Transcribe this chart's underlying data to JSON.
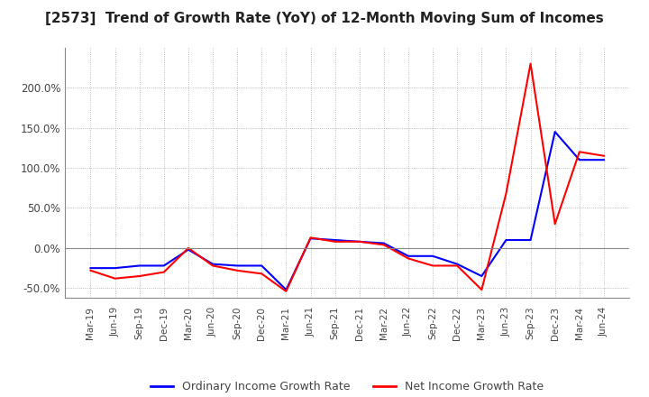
{
  "title": "[2573]  Trend of Growth Rate (YoY) of 12-Month Moving Sum of Incomes",
  "title_fontsize": 11,
  "background_color": "#ffffff",
  "grid_color": "#aaaaaa",
  "ylim": [
    -0.62,
    0.275
  ],
  "yticks": [
    -0.5,
    0.0,
    0.5,
    1.0,
    1.5,
    2.0
  ],
  "legend_labels": [
    "Ordinary Income Growth Rate",
    "Net Income Growth Rate"
  ],
  "legend_colors": [
    "blue",
    "red"
  ],
  "x_labels": [
    "Mar-19",
    "Jun-19",
    "Sep-19",
    "Dec-19",
    "Mar-20",
    "Jun-20",
    "Sep-20",
    "Dec-20",
    "Mar-21",
    "Jun-21",
    "Sep-21",
    "Dec-21",
    "Mar-22",
    "Jun-22",
    "Sep-22",
    "Dec-22",
    "Mar-23",
    "Jun-23",
    "Sep-23",
    "Dec-23",
    "Mar-24",
    "Jun-24"
  ],
  "ordinary_income_gr": [
    -0.25,
    -0.25,
    -0.22,
    -0.22,
    -0.02,
    -0.2,
    -0.22,
    -0.22,
    -0.52,
    0.12,
    0.1,
    0.08,
    0.06,
    -0.1,
    -0.1,
    -0.2,
    -0.35,
    0.1,
    0.1,
    1.45,
    1.1,
    1.1
  ],
  "net_income_gr": [
    -0.28,
    -0.38,
    -0.35,
    -0.3,
    0.0,
    -0.22,
    -0.28,
    -0.32,
    -0.54,
    0.13,
    0.08,
    0.08,
    0.04,
    -0.13,
    -0.22,
    -0.22,
    -0.52,
    0.68,
    2.3,
    0.3,
    1.2,
    1.15
  ]
}
